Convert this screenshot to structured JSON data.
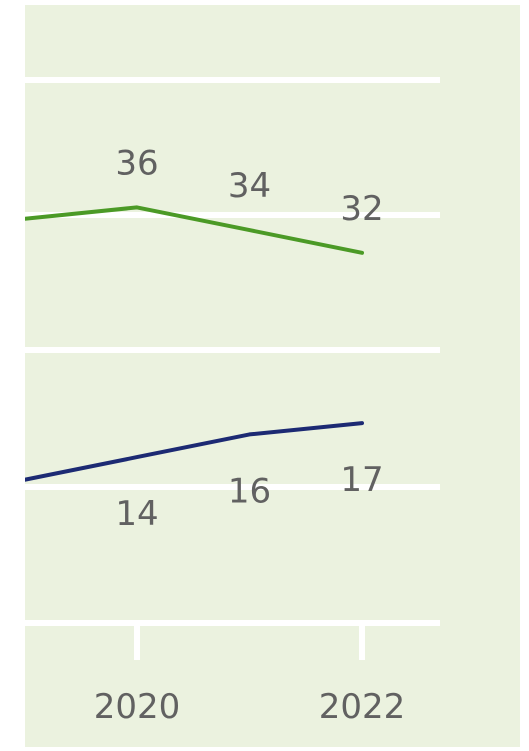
{
  "chart_data": {
    "type": "line",
    "title": "",
    "xlabel": "",
    "ylabel": "",
    "x_ticks": [
      2020,
      2022
    ],
    "x_tick_labels": [
      "2020",
      "2022"
    ],
    "series": [
      {
        "color": "#4b9a26",
        "points": [
          {
            "x": 2019,
            "y": 35.0
          },
          {
            "x": 2020,
            "y": 36.0
          },
          {
            "x": 2021,
            "y": 34.0
          },
          {
            "x": 2022,
            "y": 32.0
          }
        ],
        "data_labels": [
          {
            "x": 2020,
            "text": "36"
          },
          {
            "x": 2021,
            "text": "34"
          },
          {
            "x": 2022,
            "text": "32"
          }
        ]
      },
      {
        "color": "#1c2a73",
        "points": [
          {
            "x": 2019,
            "y": 12.0
          },
          {
            "x": 2020,
            "y": 14.0
          },
          {
            "x": 2021,
            "y": 16.0
          },
          {
            "x": 2022,
            "y": 17.0
          }
        ],
        "data_labels": [
          {
            "x": 2020,
            "text": "14"
          },
          {
            "x": 2021,
            "text": "16"
          },
          {
            "x": 2022,
            "text": "17"
          }
        ]
      }
    ],
    "grid": true,
    "legend": "none"
  }
}
